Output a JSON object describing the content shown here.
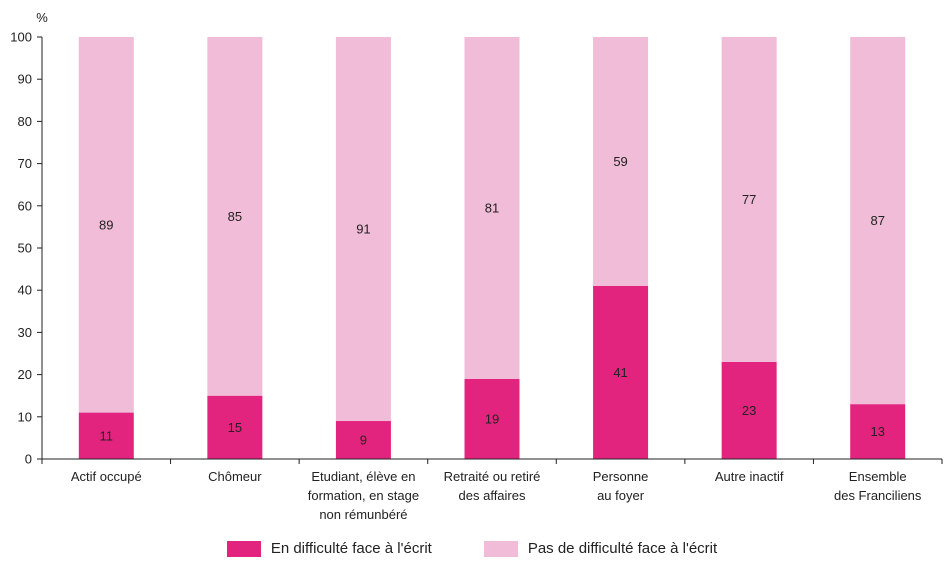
{
  "chart_data": {
    "type": "bar",
    "stacked": true,
    "yunit": "%",
    "ylim": [
      0,
      100
    ],
    "yticks": [
      0,
      10,
      20,
      30,
      40,
      50,
      60,
      70,
      80,
      90,
      100
    ],
    "grid": false,
    "legend_position": "bottom",
    "categories": [
      [
        "Actif occupé"
      ],
      [
        "Chômeur"
      ],
      [
        "Etudiant, élève en",
        "formation, en stage",
        "non rémunbéré"
      ],
      [
        "Retraité ou retiré",
        "des affaires"
      ],
      [
        "Personne",
        "au foyer"
      ],
      [
        "Autre inactif"
      ],
      [
        "Ensemble",
        "des Franciliens"
      ]
    ],
    "series": [
      {
        "name": "En difficulté face à l'écrit",
        "color": "#e3247f",
        "values": [
          11,
          15,
          9,
          19,
          41,
          23,
          13
        ]
      },
      {
        "name": "Pas de difficulté face à l'écrit",
        "color": "#f0bcd8",
        "values": [
          89,
          85,
          91,
          81,
          59,
          77,
          87
        ]
      }
    ]
  }
}
